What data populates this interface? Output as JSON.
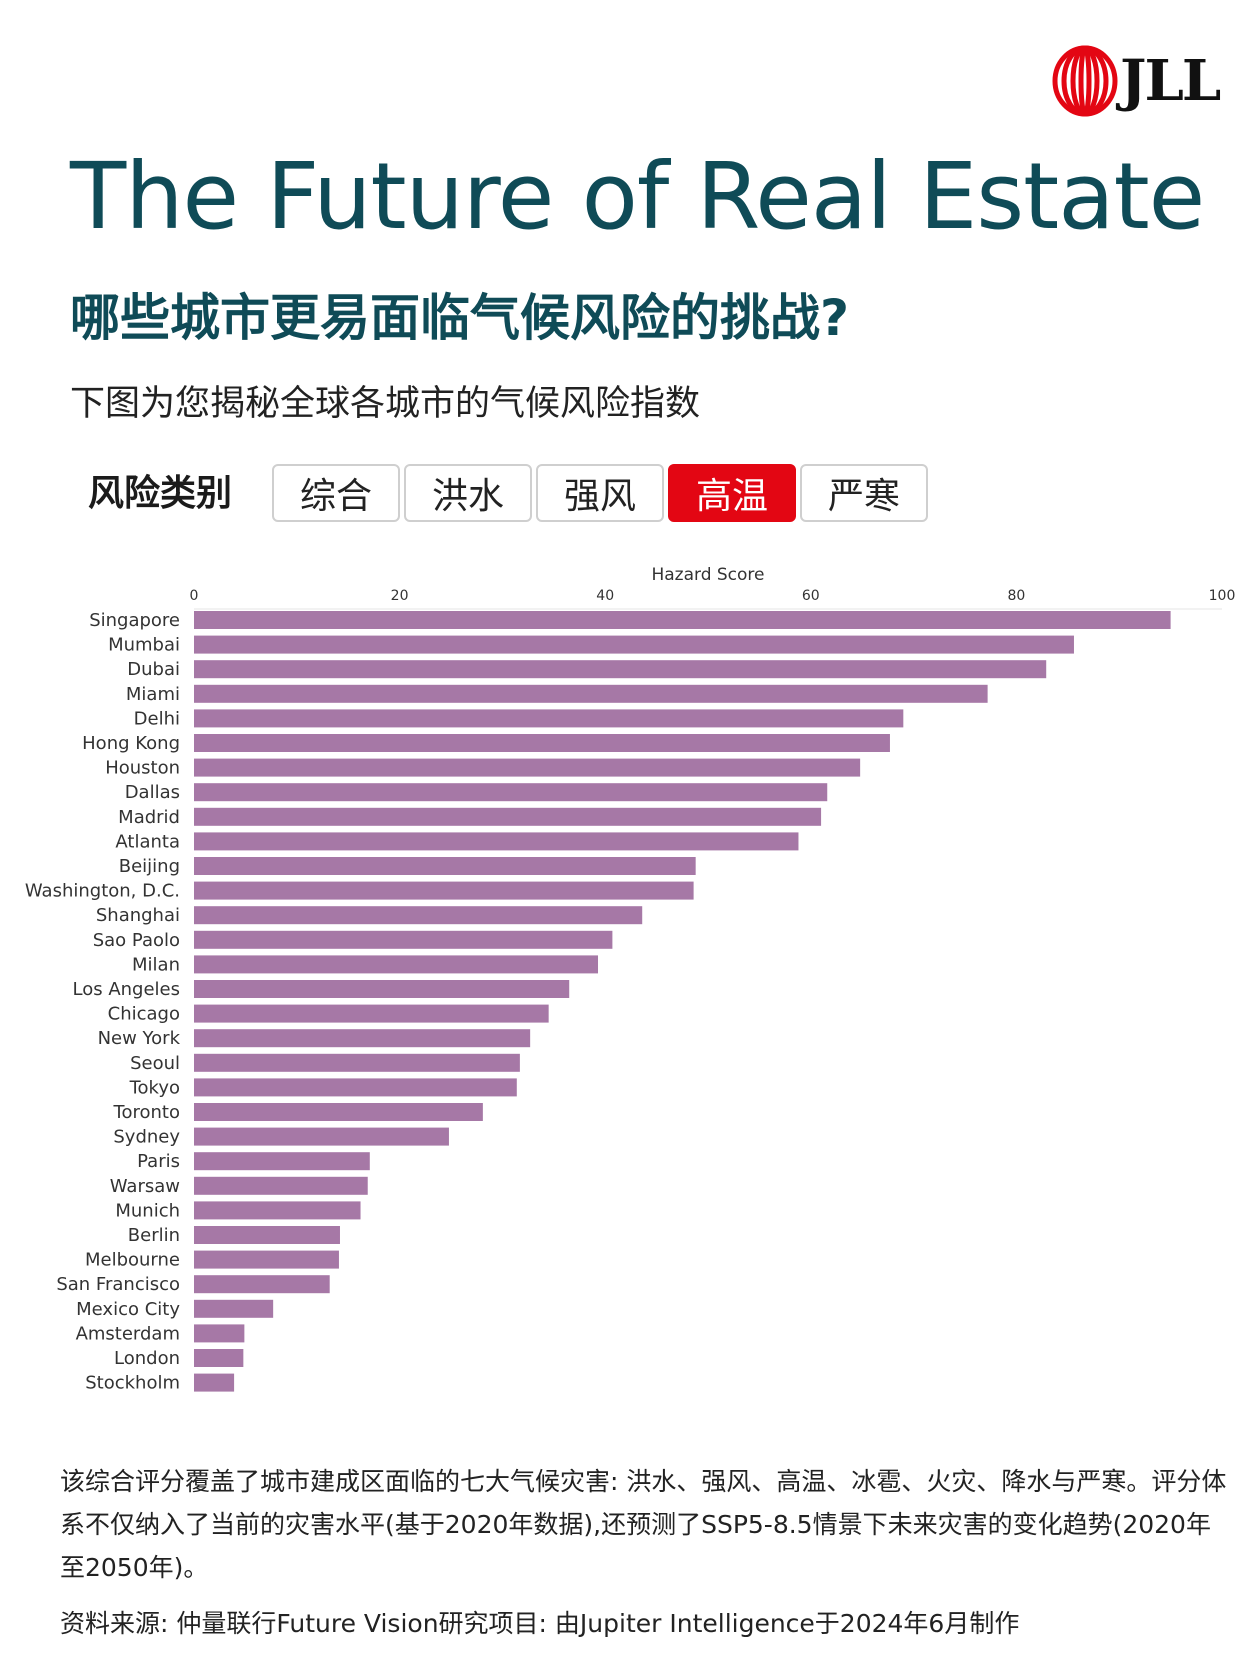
{
  "brand": {
    "logo_text": "JLL",
    "logo_color": "#e30613"
  },
  "header": {
    "title": "The Future of Real Estate",
    "question": "哪些城市更易面临气候风险的挑战?",
    "subtitle": "下图为您揭秘全球各城市的气候风险指数"
  },
  "filter": {
    "label": "风险类别",
    "tabs": [
      {
        "label": "综合",
        "active": false
      },
      {
        "label": "洪水",
        "active": false
      },
      {
        "label": "强风",
        "active": false
      },
      {
        "label": "高温",
        "active": true
      },
      {
        "label": "严寒",
        "active": false
      }
    ]
  },
  "chart_data": {
    "type": "bar",
    "orientation": "horizontal",
    "xlabel": "Hazard Score",
    "xlabel_position": "top",
    "xlim": [
      0,
      100
    ],
    "xticks": [
      0,
      20,
      40,
      60,
      80,
      100
    ],
    "grid": false,
    "bar_color": "#a678a6",
    "categories": [
      "Singapore",
      "Mumbai",
      "Dubai",
      "Miami",
      "Delhi",
      "Hong Kong",
      "Houston",
      "Dallas",
      "Madrid",
      "Atlanta",
      "Beijing",
      "Washington, D.C.",
      "Shanghai",
      "Sao Paolo",
      "Milan",
      "Los Angeles",
      "Chicago",
      "New York",
      "Seoul",
      "Tokyo",
      "Toronto",
      "Sydney",
      "Paris",
      "Warsaw",
      "Munich",
      "Berlin",
      "Melbourne",
      "San Francisco",
      "Mexico City",
      "Amsterdam",
      "London",
      "Stockholm"
    ],
    "values": [
      95,
      85.6,
      82.9,
      77.2,
      69,
      67.7,
      64.8,
      61.6,
      61,
      58.8,
      48.8,
      48.6,
      43.6,
      40.7,
      39.3,
      36.5,
      34.5,
      32.7,
      31.7,
      31.4,
      28.1,
      24.8,
      17.1,
      16.9,
      16.2,
      14.2,
      14.1,
      13.2,
      7.7,
      4.9,
      4.8,
      3.9
    ]
  },
  "footnote": "该综合评分覆盖了城市建成区面临的七大气候灾害: 洪水、强风、高温、冰雹、火灾、降水与严寒。评分体系不仅纳入了当前的灾害水平(基于2020年数据),还预测了SSP5-8.5情景下未来灾害的变化趋势(2020年至2050年)。",
  "source": "资料来源: 仲量联行Future Vision研究项目: 由Jupiter Intelligence于2024年6月制作"
}
